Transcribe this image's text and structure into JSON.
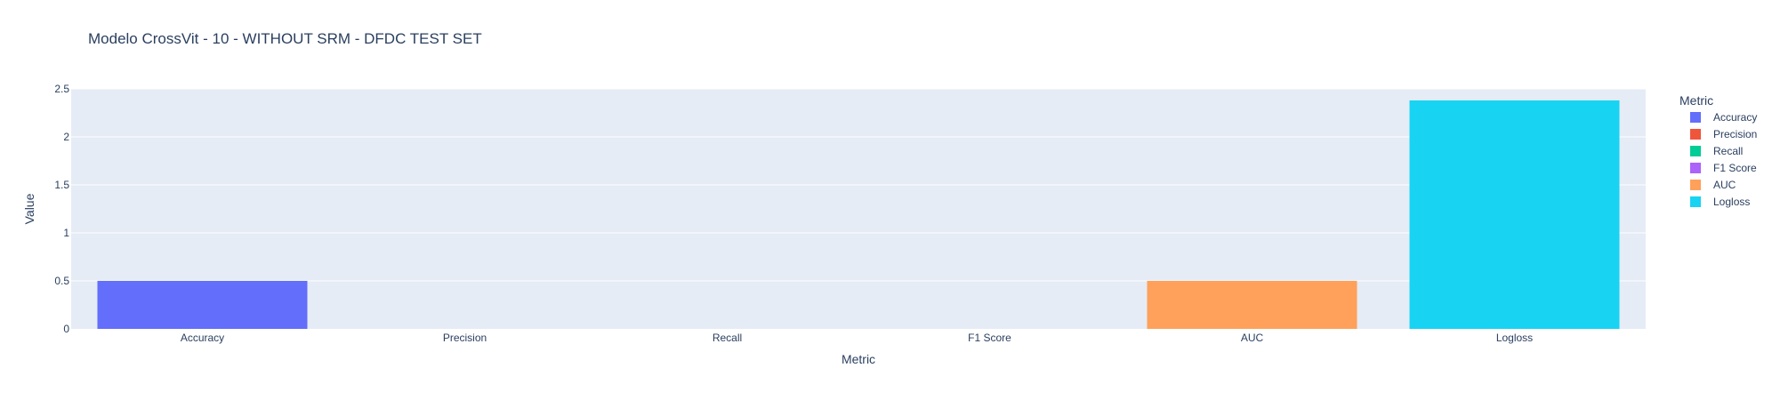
{
  "chart_data": {
    "type": "bar",
    "title": "Modelo CrossVit - 10 - WITHOUT SRM - DFDC TEST SET",
    "xlabel": "Metric",
    "ylabel": "Value",
    "categories": [
      "Accuracy",
      "Precision",
      "Recall",
      "F1 Score",
      "AUC",
      "Logloss"
    ],
    "values": [
      0.5,
      0,
      0,
      0,
      0.5,
      2.38
    ],
    "colors": [
      "#636efa",
      "#EF553B",
      "#00cc96",
      "#ab63fa",
      "#FFA15A",
      "#19d3f3"
    ],
    "ylim": [
      0,
      2.5
    ],
    "yticks": [
      "0",
      "0.5",
      "1",
      "1.5",
      "2",
      "2.5"
    ],
    "grid": true,
    "legend": {
      "title": "Metric",
      "position": "right",
      "items": [
        "Accuracy",
        "Precision",
        "Recall",
        "F1 Score",
        "AUC",
        "Logloss"
      ]
    }
  }
}
